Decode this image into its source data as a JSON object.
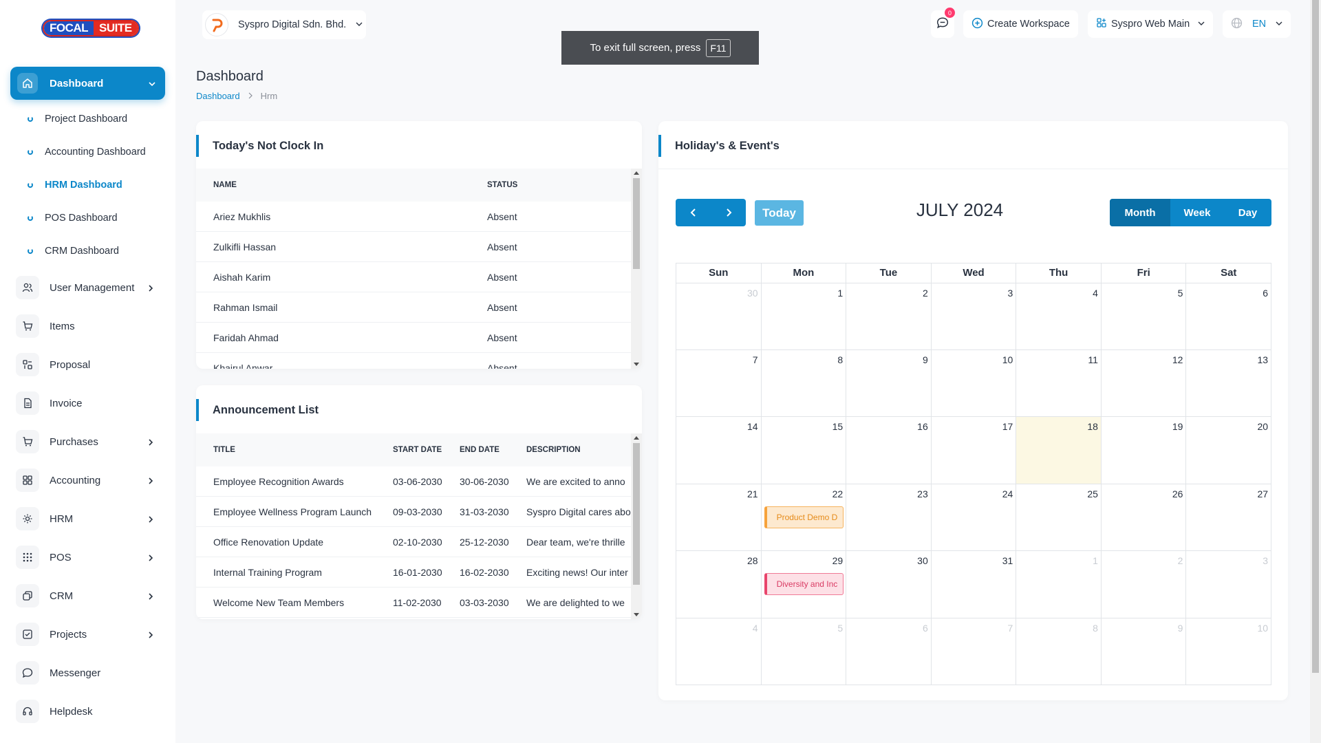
{
  "app": {
    "logo_part1": "FOCAL",
    "logo_part2": "SUITE",
    "accent_color": "#0c87c9"
  },
  "sidebar": {
    "active": {
      "label": "Dashboard",
      "icon": "home-icon"
    },
    "subitems": [
      {
        "label": "Project Dashboard"
      },
      {
        "label": "Accounting Dashboard"
      },
      {
        "label": "HRM Dashboard",
        "active": true
      },
      {
        "label": "POS Dashboard"
      },
      {
        "label": "CRM Dashboard"
      }
    ],
    "items": [
      {
        "label": "User Management",
        "icon": "users-icon",
        "has_arrow": true
      },
      {
        "label": "Items",
        "icon": "cart-icon",
        "has_arrow": false
      },
      {
        "label": "Proposal",
        "icon": "proposal-icon",
        "has_arrow": false
      },
      {
        "label": "Invoice",
        "icon": "file-icon",
        "has_arrow": false
      },
      {
        "label": "Purchases",
        "icon": "cart-icon",
        "has_arrow": true
      },
      {
        "label": "Accounting",
        "icon": "grid-icon",
        "has_arrow": true
      },
      {
        "label": "HRM",
        "icon": "hrm-icon",
        "has_arrow": true
      },
      {
        "label": "POS",
        "icon": "dots-grid-icon",
        "has_arrow": true
      },
      {
        "label": "CRM",
        "icon": "layers-icon",
        "has_arrow": true
      },
      {
        "label": "Projects",
        "icon": "check-square-icon",
        "has_arrow": true
      },
      {
        "label": "Messenger",
        "icon": "chat-icon",
        "has_arrow": false
      },
      {
        "label": "Helpdesk",
        "icon": "headset-icon",
        "has_arrow": false
      }
    ]
  },
  "topbar": {
    "company": "Syspro Digital Sdn. Bhd.",
    "notification_count": "0",
    "create_workspace": "Create Workspace",
    "workspace": "Syspro Web Main",
    "language": "EN"
  },
  "toast": {
    "text": "To exit full screen, press",
    "key": "F11"
  },
  "page": {
    "title": "Dashboard",
    "breadcrumb": [
      "Dashboard",
      "Hrm"
    ]
  },
  "not_clock_in": {
    "title": "Today's Not Clock In",
    "columns": [
      "NAME",
      "STATUS"
    ],
    "rows": [
      {
        "name": "Ariez Mukhlis",
        "status": "Absent"
      },
      {
        "name": "Zulkifli Hassan",
        "status": "Absent"
      },
      {
        "name": "Aishah Karim",
        "status": "Absent"
      },
      {
        "name": "Rahman Ismail",
        "status": "Absent"
      },
      {
        "name": "Faridah Ahmad",
        "status": "Absent"
      },
      {
        "name": "Khairul Anwar",
        "status": "Absent"
      }
    ]
  },
  "announcements": {
    "title": "Announcement List",
    "columns": [
      "TITLE",
      "START DATE",
      "END DATE",
      "DESCRIPTION"
    ],
    "rows": [
      {
        "title": "Employee Recognition Awards",
        "start": "03-06-2030",
        "end": "30-06-2030",
        "desc": "We are excited to anno"
      },
      {
        "title": "Employee Wellness Program Launch",
        "start": "09-03-2030",
        "end": "31-03-2030",
        "desc": "Syspro Digital cares abo"
      },
      {
        "title": "Office Renovation Update",
        "start": "02-10-2030",
        "end": "25-12-2030",
        "desc": "Dear team, we're thrille"
      },
      {
        "title": "Internal Training Program",
        "start": "16-01-2030",
        "end": "16-02-2030",
        "desc": "Exciting news! Our inter"
      },
      {
        "title": "Welcome New Team Members",
        "start": "11-02-2030",
        "end": "03-03-2030",
        "desc": "We are delighted to we"
      }
    ]
  },
  "calendar": {
    "title": "Holiday's & Event's",
    "month_label": "JULY 2024",
    "today_label": "Today",
    "views": [
      "Month",
      "Week",
      "Day"
    ],
    "active_view": "Month",
    "weekdays": [
      "Sun",
      "Mon",
      "Tue",
      "Wed",
      "Thu",
      "Fri",
      "Sat"
    ],
    "weeks": [
      [
        {
          "d": "30",
          "o": true
        },
        {
          "d": "1"
        },
        {
          "d": "2"
        },
        {
          "d": "3"
        },
        {
          "d": "4"
        },
        {
          "d": "5"
        },
        {
          "d": "6"
        }
      ],
      [
        {
          "d": "7"
        },
        {
          "d": "8"
        },
        {
          "d": "9"
        },
        {
          "d": "10"
        },
        {
          "d": "11"
        },
        {
          "d": "12"
        },
        {
          "d": "13"
        }
      ],
      [
        {
          "d": "14"
        },
        {
          "d": "15"
        },
        {
          "d": "16"
        },
        {
          "d": "17"
        },
        {
          "d": "18",
          "today": true
        },
        {
          "d": "19"
        },
        {
          "d": "20"
        }
      ],
      [
        {
          "d": "21"
        },
        {
          "d": "22",
          "event": {
            "label": "Product Demo D",
            "color": "orange"
          }
        },
        {
          "d": "23"
        },
        {
          "d": "24"
        },
        {
          "d": "25"
        },
        {
          "d": "26"
        },
        {
          "d": "27"
        }
      ],
      [
        {
          "d": "28"
        },
        {
          "d": "29",
          "event": {
            "label": "Diversity and Inc",
            "color": "pink"
          }
        },
        {
          "d": "30"
        },
        {
          "d": "31"
        },
        {
          "d": "1",
          "o": true
        },
        {
          "d": "2",
          "o": true
        },
        {
          "d": "3",
          "o": true
        }
      ],
      [
        {
          "d": "4",
          "o": true
        },
        {
          "d": "5",
          "o": true
        },
        {
          "d": "6",
          "o": true
        },
        {
          "d": "7",
          "o": true
        },
        {
          "d": "8",
          "o": true
        },
        {
          "d": "9",
          "o": true
        },
        {
          "d": "10",
          "o": true
        }
      ]
    ]
  }
}
